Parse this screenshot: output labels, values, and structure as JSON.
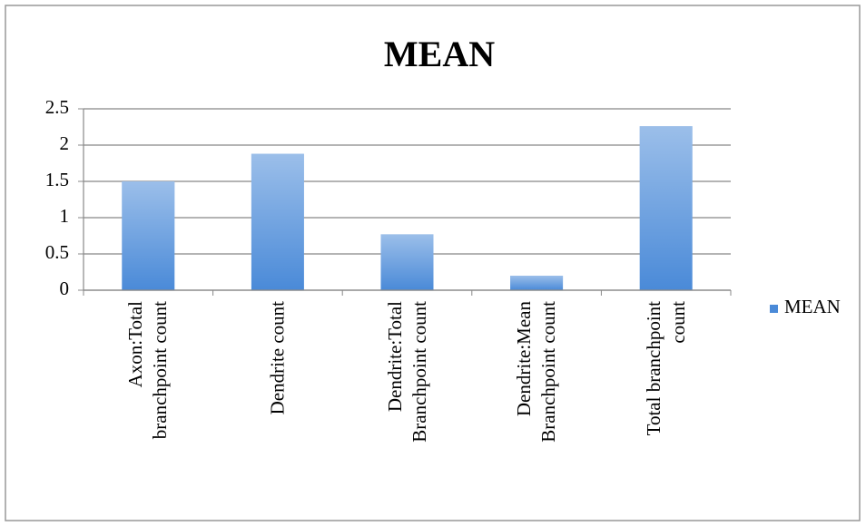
{
  "chart_data": {
    "type": "bar",
    "title": "MEAN",
    "categories": [
      "Axon:Total branchpoint count",
      "Dendrite count",
      "Dendrite:Total Branchpoint count",
      "Dendrite:Mean Branchpoint count",
      "Total branchpoint count"
    ],
    "series": [
      {
        "name": "MEAN",
        "color": "#4a8ad8",
        "values": [
          1.5,
          1.88,
          0.77,
          0.2,
          2.26
        ]
      }
    ],
    "ylim": [
      0,
      2.5
    ],
    "yticks": [
      0,
      0.5,
      1,
      1.5,
      2,
      2.5
    ],
    "grid": true,
    "legend": "right"
  }
}
